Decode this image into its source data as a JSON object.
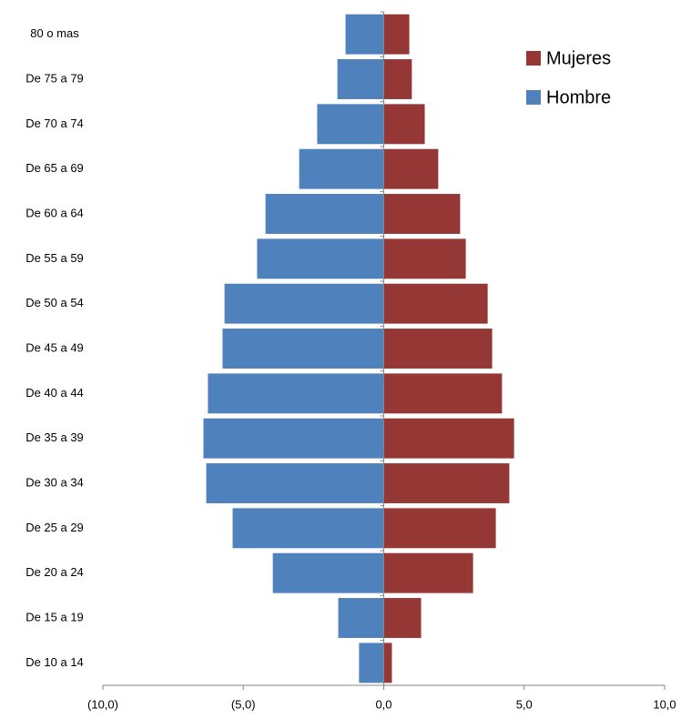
{
  "chart_data": {
    "type": "bar",
    "orientation": "horizontal",
    "stacked": true,
    "categories": [
      "80 o mas",
      "De 75 a 79",
      "De 70 a 74",
      "De 65 a 69",
      "De 60 a 64",
      "De 55 a 59",
      "De 50 a 54",
      "De 45 a 49",
      "De 40 a 44",
      "De 35 a 39",
      "De 30 a 34",
      "De 25 a 29",
      "De 20 a 24",
      "De 15 a 19",
      "De 10 a 14"
    ],
    "series": [
      {
        "name": "Mujeres",
        "color": "#953735",
        "values": [
          0.91,
          1.0,
          1.46,
          1.94,
          2.72,
          2.92,
          3.7,
          3.86,
          4.21,
          4.64,
          4.47,
          3.99,
          3.18,
          1.33,
          0.29
        ]
      },
      {
        "name": "Hombre",
        "color": "#4f81bd",
        "values": [
          -1.36,
          -1.65,
          -2.37,
          -3.01,
          -4.21,
          -4.51,
          -5.67,
          -5.74,
          -6.26,
          -6.42,
          -6.32,
          -5.38,
          -3.95,
          -1.62,
          -0.88
        ]
      }
    ],
    "xlim": [
      -10,
      10
    ],
    "xticks": [
      {
        "value": -10,
        "label": "(10,0)"
      },
      {
        "value": -5,
        "label": "(5,0)"
      },
      {
        "value": 0,
        "label": "0,0"
      },
      {
        "value": 5,
        "label": "5,0"
      },
      {
        "value": 10,
        "label": "10,0"
      }
    ],
    "legend": "top-right"
  }
}
